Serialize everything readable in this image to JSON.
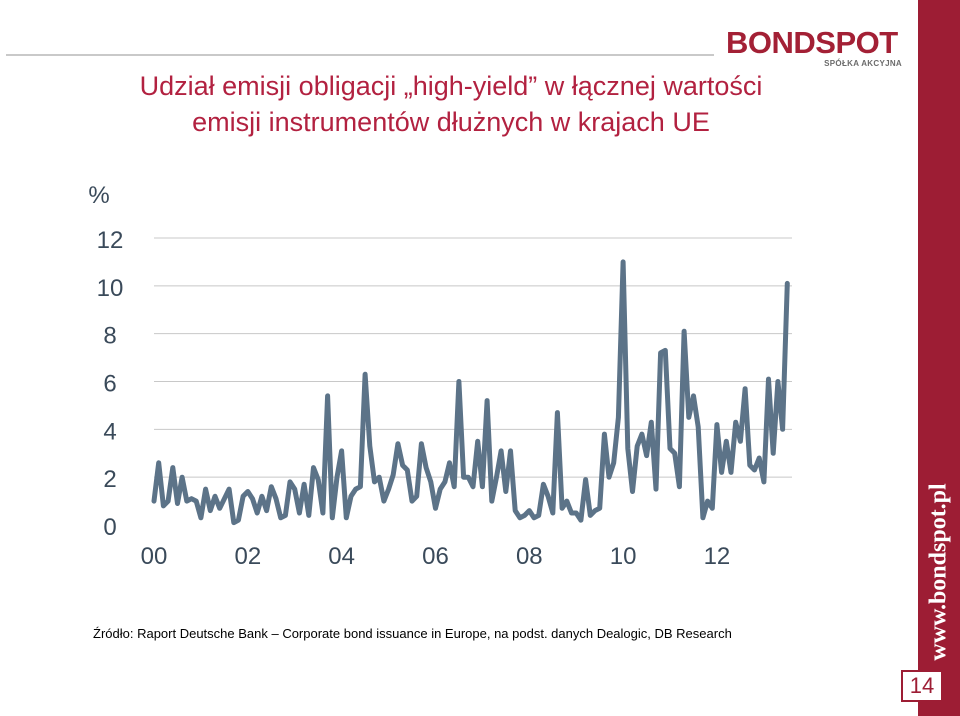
{
  "header": {
    "logo_text": "BONDSPOT",
    "logo_subtitle": "SPÓŁKA AKCYJNA"
  },
  "title": {
    "line1": "Udział emisji obligacji „high-yield” w łącznej wartości",
    "line2": "emisji instrumentów dłużnych w krajach UE"
  },
  "sidebar": {
    "url": "www.bondspot.pl"
  },
  "page_number": "14",
  "source": "Źródło: Raport Deutsche Bank – Corporate bond issuance in Europe, na podst. danych Dealogic, DB Research",
  "colors": {
    "brand": "#9d1d34",
    "title": "#b22140",
    "line": "#5c7388",
    "grid": "#c8c8c8"
  },
  "chart_data": {
    "type": "line",
    "title": "",
    "xlabel": "",
    "ylabel": "%",
    "xlim": [
      2000,
      2013.6
    ],
    "ylim": [
      0,
      12
    ],
    "yticks": [
      "0",
      "2",
      "4",
      "6",
      "8",
      "10",
      "12"
    ],
    "xticks": [
      {
        "label": "00",
        "x": 2000
      },
      {
        "label": "02",
        "x": 2002
      },
      {
        "label": "04",
        "x": 2004
      },
      {
        "label": "06",
        "x": 2006
      },
      {
        "label": "08",
        "x": 2008
      },
      {
        "label": "10",
        "x": 2010
      },
      {
        "label": "12",
        "x": 2012
      }
    ],
    "series": [
      {
        "x": [
          2000.0,
          2000.1,
          2000.2,
          2000.3,
          2000.4,
          2000.5,
          2000.6,
          2000.7,
          2000.8,
          2000.9,
          2001.0,
          2001.1,
          2001.2,
          2001.3,
          2001.4,
          2001.5,
          2001.6,
          2001.7,
          2001.8,
          2001.9,
          2002.0,
          2002.1,
          2002.2,
          2002.3,
          2002.4,
          2002.5,
          2002.6,
          2002.7,
          2002.8,
          2002.9,
          2003.0,
          2003.1,
          2003.2,
          2003.3,
          2003.4,
          2003.5,
          2003.6,
          2003.7,
          2003.8,
          2003.9,
          2004.0,
          2004.1,
          2004.2,
          2004.3,
          2004.4,
          2004.5,
          2004.6,
          2004.7,
          2004.8,
          2004.9,
          2005.0,
          2005.1,
          2005.2,
          2005.3,
          2005.4,
          2005.5,
          2005.6,
          2005.7,
          2005.8,
          2005.9,
          2006.0,
          2006.1,
          2006.2,
          2006.3,
          2006.4,
          2006.5,
          2006.6,
          2006.7,
          2006.8,
          2006.9,
          2007.0,
          2007.1,
          2007.2,
          2007.3,
          2007.4,
          2007.5,
          2007.6,
          2007.7,
          2007.8,
          2007.9,
          2008.0,
          2008.1,
          2008.2,
          2008.3,
          2008.4,
          2008.5,
          2008.6,
          2008.7,
          2008.8,
          2008.9,
          2009.0,
          2009.1,
          2009.2,
          2009.3,
          2009.4,
          2009.5,
          2009.6,
          2009.7,
          2009.8,
          2009.9,
          2010.0,
          2010.1,
          2010.2,
          2010.3,
          2010.4,
          2010.5,
          2010.6,
          2010.7,
          2010.8,
          2010.9,
          2011.0,
          2011.1,
          2011.2,
          2011.3,
          2011.4,
          2011.5,
          2011.6,
          2011.7,
          2011.8,
          2011.9,
          2012.0,
          2012.1,
          2012.2,
          2012.3,
          2012.4,
          2012.5,
          2012.6,
          2012.7,
          2012.8,
          2012.9,
          2013.0,
          2013.1,
          2013.2,
          2013.3,
          2013.4,
          2013.5
        ],
        "y": [
          1.0,
          2.6,
          0.8,
          1.0,
          2.4,
          0.9,
          2.0,
          1.0,
          1.1,
          1.0,
          0.3,
          1.5,
          0.6,
          1.2,
          0.7,
          1.1,
          1.5,
          0.1,
          0.2,
          1.2,
          1.4,
          1.1,
          0.5,
          1.2,
          0.6,
          1.6,
          1.1,
          0.3,
          0.4,
          1.8,
          1.5,
          0.5,
          1.7,
          0.4,
          2.4,
          1.9,
          0.5,
          5.4,
          0.3,
          2.0,
          3.1,
          0.3,
          1.2,
          1.5,
          1.6,
          6.3,
          3.3,
          1.8,
          2.0,
          1.0,
          1.5,
          2.1,
          3.4,
          2.5,
          2.3,
          1.0,
          1.2,
          3.4,
          2.4,
          1.8,
          0.7,
          1.5,
          1.8,
          2.6,
          1.6,
          6.0,
          2.0,
          2.0,
          1.6,
          3.5,
          1.6,
          5.2,
          1.0,
          2.0,
          3.1,
          1.4,
          3.1,
          0.6,
          0.3,
          0.4,
          0.6,
          0.3,
          0.4,
          1.7,
          1.2,
          0.5,
          4.7,
          0.7,
          1.0,
          0.5,
          0.5,
          0.2,
          1.9,
          0.4,
          0.6,
          0.7,
          3.8,
          2.0,
          2.6,
          4.5,
          11.0,
          3.2,
          1.4,
          3.3,
          3.8,
          2.9,
          4.3,
          1.5,
          7.2,
          7.3,
          3.2,
          3.0,
          1.6,
          8.1,
          4.5,
          5.4,
          4.1,
          0.3,
          1.0,
          0.7,
          4.2,
          2.2,
          3.5,
          2.2,
          4.3,
          3.5,
          5.7,
          2.5,
          2.3,
          2.8,
          1.8,
          6.1,
          3.0,
          6.0,
          4.0,
          10.1
        ]
      }
    ]
  }
}
